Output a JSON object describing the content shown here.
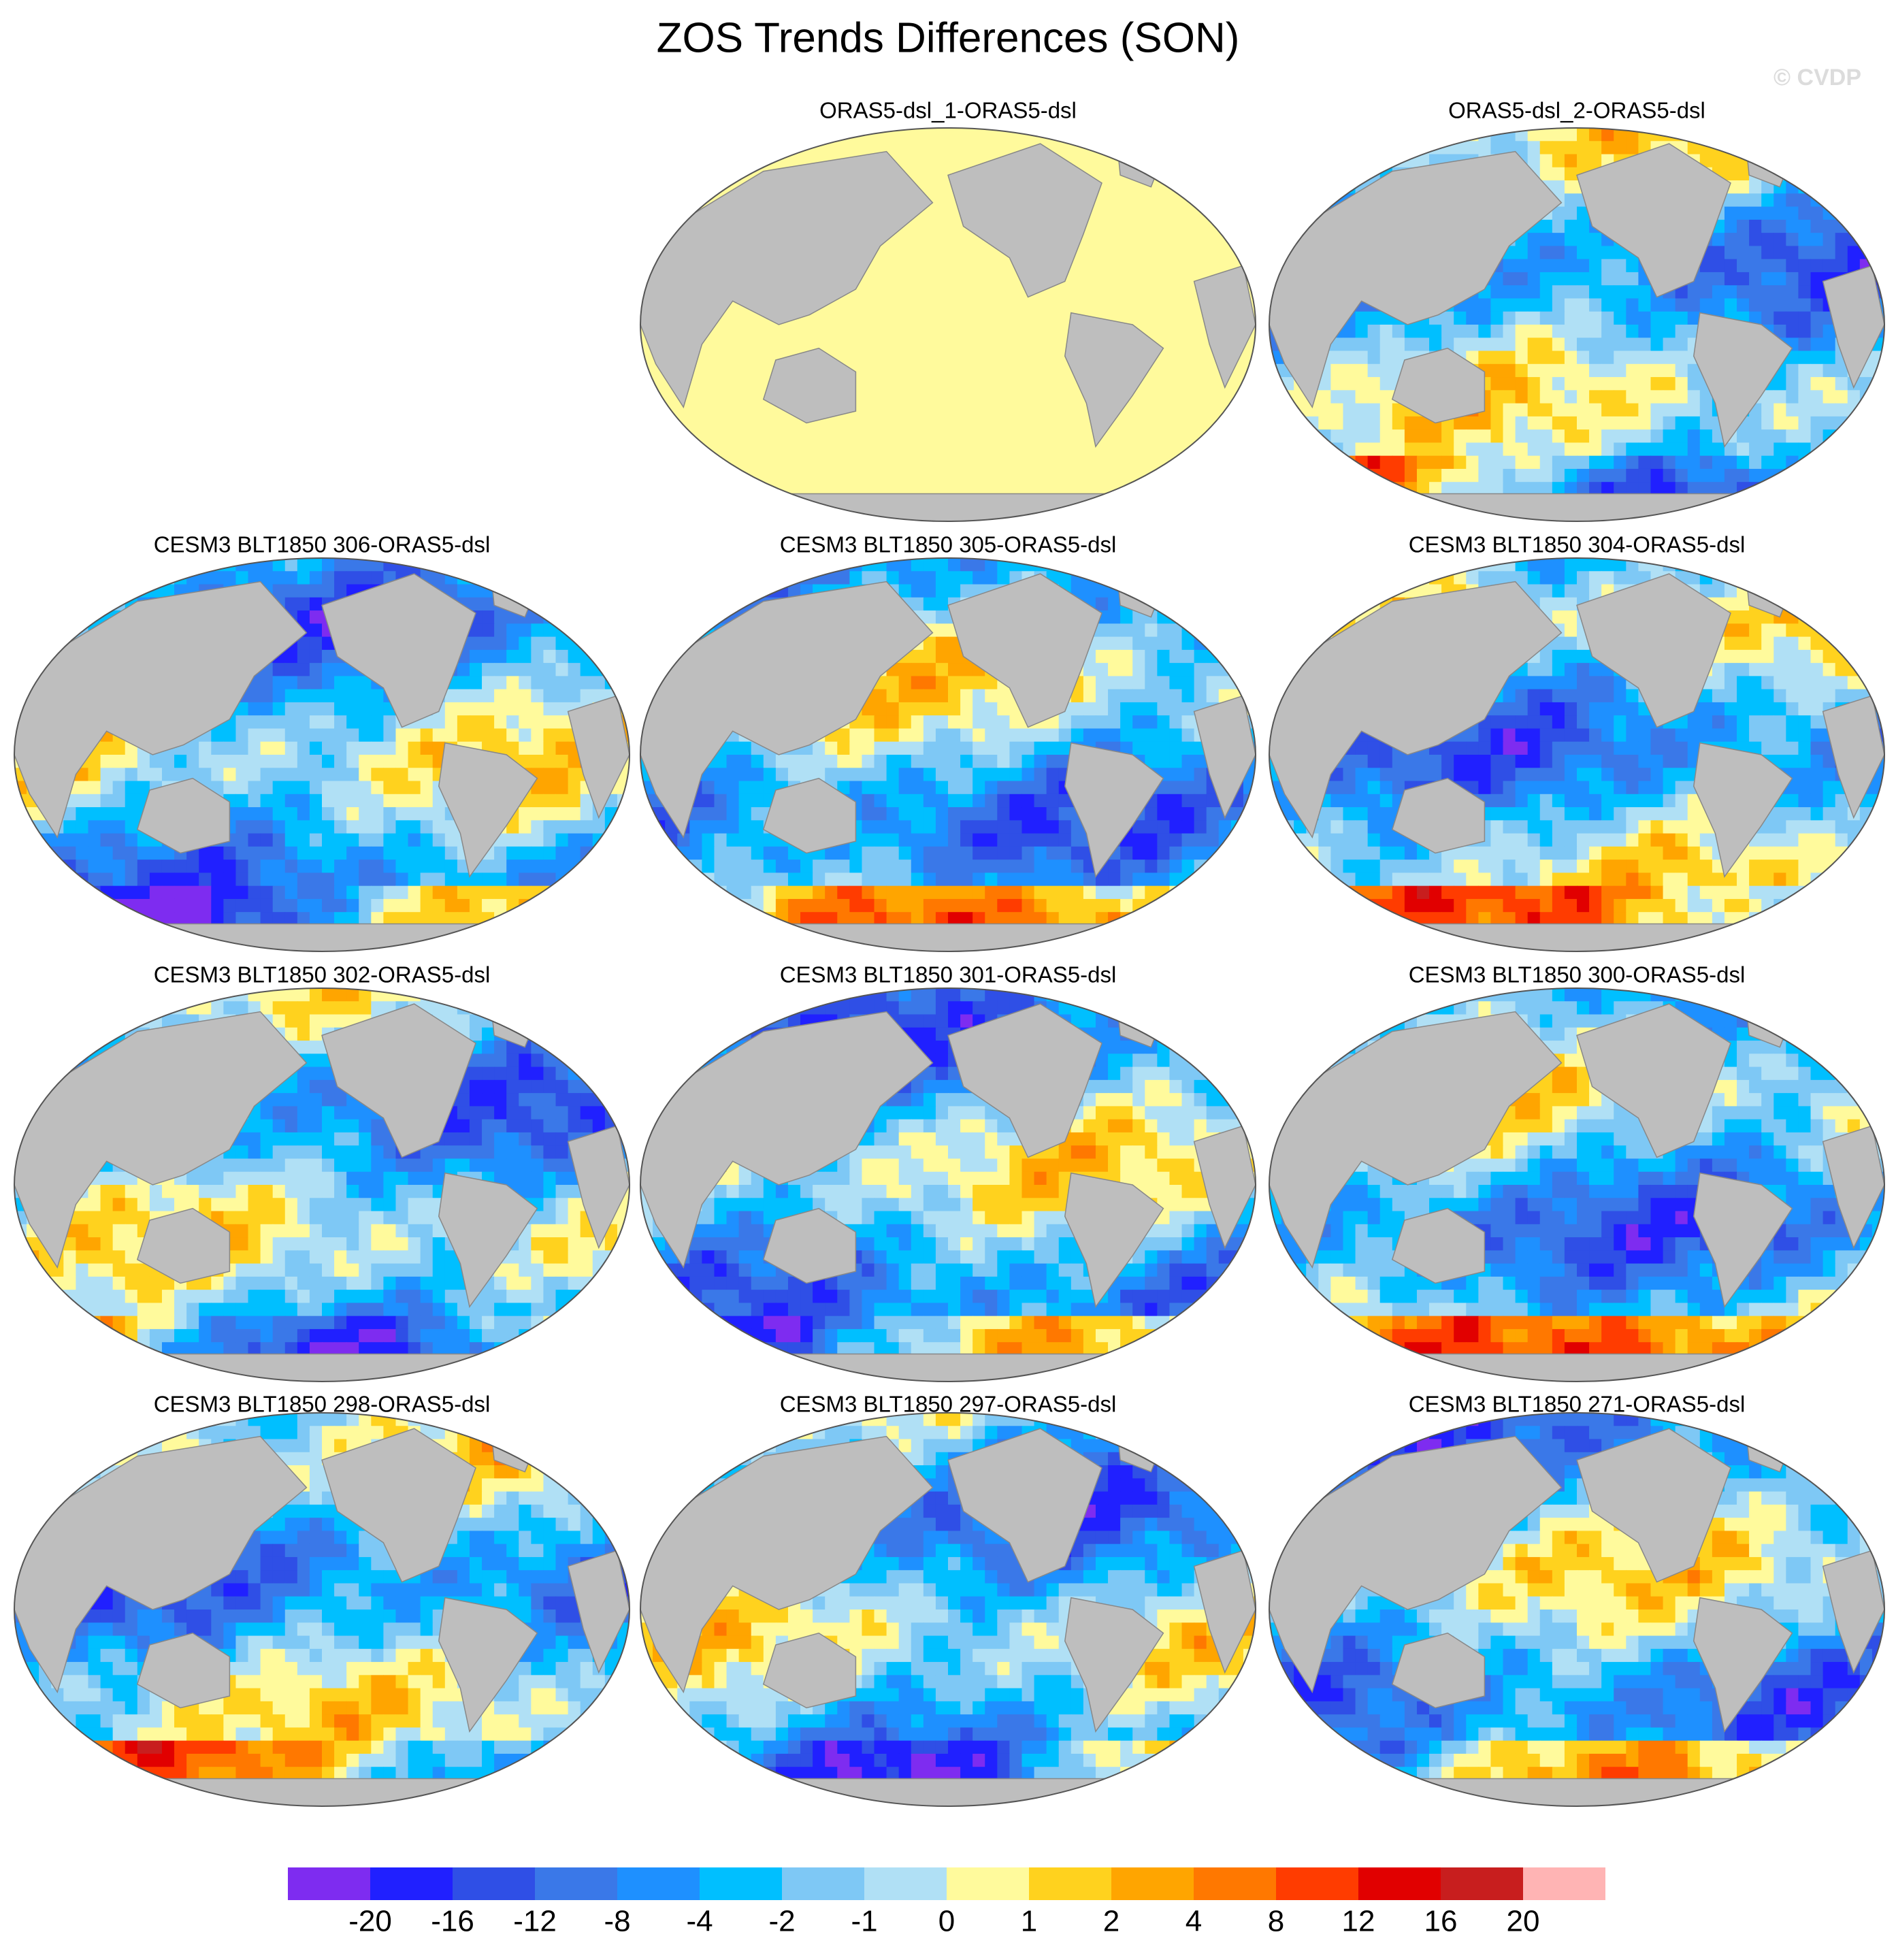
{
  "title": "ZOS Trends Differences (SON)",
  "watermark": "© CVDP",
  "panels": [
    "ORAS5-dsl_1-ORAS5-dsl",
    "ORAS5-dsl_2-ORAS5-dsl",
    "CESM3 BLT1850 306-ORAS5-dsl",
    "CESM3 BLT1850 305-ORAS5-dsl",
    "CESM3 BLT1850 304-ORAS5-dsl",
    "CESM3 BLT1850 302-ORAS5-dsl",
    "CESM3 BLT1850 301-ORAS5-dsl",
    "CESM3 BLT1850 300-ORAS5-dsl",
    "CESM3 BLT1850 298-ORAS5-dsl",
    "CESM3 BLT1850 297-ORAS5-dsl",
    "CESM3 BLT1850 271-ORAS5-dsl"
  ],
  "colorbar": {
    "levels": [
      -20,
      -16,
      -12,
      -8,
      -4,
      -2,
      -1,
      0,
      1,
      2,
      4,
      8,
      12,
      16,
      20
    ],
    "colors": [
      "#7e2cf0",
      "#2020ff",
      "#2f4fe6",
      "#3a78e8",
      "#1e90ff",
      "#00bfff",
      "#7ec8f5",
      "#b0e0f5",
      "#fffa9c",
      "#ffd21e",
      "#ffa500",
      "#ff7800",
      "#ff3c00",
      "#e10000",
      "#c81e1e",
      "#ffb4b4"
    ]
  }
}
